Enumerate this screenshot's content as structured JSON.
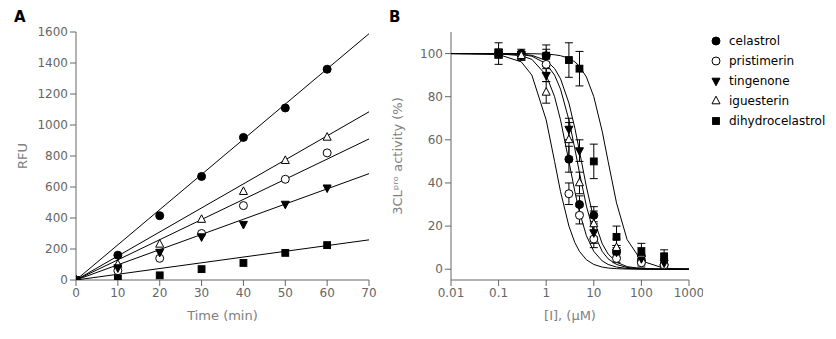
{
  "chart_data": [
    {
      "type": "scatter",
      "title": "A",
      "x_label": "Time (min)",
      "y_label": "RFU",
      "xlim": [
        0,
        70
      ],
      "ylim": [
        0,
        1600
      ],
      "xticks": [
        0,
        10,
        20,
        30,
        40,
        50,
        60,
        70
      ],
      "yticks": [
        0,
        200,
        400,
        600,
        800,
        1000,
        1200,
        1400,
        1600
      ],
      "grid": false,
      "series": [
        {
          "marker": "filled circle",
          "color": "#000000",
          "x": [
            0,
            10,
            20,
            30,
            40,
            50,
            60
          ],
          "values": [
            0,
            160,
            415,
            668,
            920,
            1110,
            1360
          ],
          "fit": {
            "x": [
              0,
              70
            ],
            "values": [
              0,
              1589
            ]
          }
        },
        {
          "marker": "open triangle-up",
          "color": "#000000",
          "x": [
            0,
            10,
            20,
            30,
            40,
            50,
            60
          ],
          "values": [
            0,
            100,
            230,
            390,
            570,
            770,
            920
          ],
          "fit": {
            "x": [
              0,
              70
            ],
            "values": [
              0,
              1085
            ]
          }
        },
        {
          "marker": "open circle",
          "color": "#000000",
          "x": [
            0,
            10,
            20,
            30,
            40,
            50,
            60
          ],
          "values": [
            0,
            60,
            140,
            300,
            480,
            650,
            820
          ],
          "fit": {
            "x": [
              0,
              70
            ],
            "values": [
              0,
              910
            ]
          }
        },
        {
          "marker": "filled triangle-down",
          "color": "#000000",
          "x": [
            0,
            10,
            20,
            30,
            40,
            50,
            60
          ],
          "values": [
            0,
            80,
            180,
            280,
            360,
            490,
            595
          ],
          "fit": {
            "x": [
              0,
              70
            ],
            "values": [
              0,
              686
            ]
          }
        },
        {
          "marker": "filled square",
          "color": "#000000",
          "x": [
            0,
            10,
            20,
            30,
            40,
            50,
            60
          ],
          "values": [
            0,
            10,
            30,
            70,
            110,
            175,
            225
          ],
          "fit": {
            "x": [
              0,
              70
            ],
            "values": [
              0,
              259
            ]
          }
        }
      ]
    },
    {
      "type": "scatter",
      "title": "B",
      "x_label": "[I], (μM)",
      "y_label": "3CLᵖʳᵒ activity (%)",
      "log": "x",
      "xlim": [
        0.01,
        1000
      ],
      "xticks": [
        0.01,
        0.1,
        1,
        10,
        100,
        1000
      ],
      "ylim": [
        -5,
        110
      ],
      "yticks": [
        0,
        20,
        40,
        60,
        80,
        100
      ],
      "grid": false,
      "legend": "right",
      "series": [
        {
          "name": "celastrol",
          "marker": "filled circle",
          "color": "#000000",
          "x": [
            0.1,
            0.3,
            1,
            3,
            5,
            10,
            30,
            100,
            300
          ],
          "values": [
            100,
            100,
            99,
            51,
            30,
            25,
            8,
            4,
            2
          ],
          "y_err": [
            2,
            2,
            3,
            6,
            4,
            4,
            3,
            2,
            2
          ],
          "fit": {
            "x": [
              0.01,
              0.1,
              0.3,
              0.5,
              1,
              1.5,
              2,
              3,
              4,
              5,
              7,
              10,
              15,
              20,
              30,
              50,
              100,
              300,
              1000
            ],
            "values": [
              100,
              99.89,
              99.01,
              97.3,
              90,
              80,
              69.23,
              50,
              36,
              26.47,
              15.52,
              8.26,
              3.85,
              2.2,
              0.99,
              0.36,
              0.09,
              0.01,
              0
            ]
          }
        },
        {
          "name": "pristimerin",
          "marker": "open circle",
          "color": "#000000",
          "x": [
            0.1,
            0.3,
            1,
            3,
            5,
            10,
            30,
            100,
            300
          ],
          "values": [
            100,
            99,
            95,
            35,
            25,
            14,
            5,
            3,
            2
          ],
          "y_err": [
            2,
            2,
            4,
            5,
            4,
            4,
            2,
            2,
            2
          ],
          "fit": {
            "x": [
              0.01,
              0.1,
              0.3,
              0.5,
              1,
              1.5,
              2,
              3,
              4,
              5,
              7,
              10,
              15,
              20,
              30,
              50,
              100,
              300,
              1000
            ],
            "values": [
              100,
              99.97,
              99.7,
              99.18,
              96.8,
              93.08,
              88.32,
              77.07,
              65.41,
              54.75,
              38.17,
              23.22,
              11.85,
              7.03,
              3.25,
              1.2,
              0.3,
              0.03,
              0
            ]
          }
        },
        {
          "name": "tingenone",
          "marker": "filled triangle-down",
          "color": "#000000",
          "x": [
            0.1,
            0.3,
            1,
            3,
            5,
            10,
            30,
            100,
            300
          ],
          "values": [
            100,
            99,
            90,
            65,
            55,
            17,
            8,
            5,
            3
          ],
          "y_err": [
            2,
            2,
            3,
            5,
            5,
            5,
            3,
            2,
            2
          ],
          "fit": {
            "x": [
              0.01,
              0.1,
              0.3,
              0.5,
              1,
              1.5,
              2,
              3,
              4,
              5,
              7,
              10,
              15,
              20,
              30,
              50,
              100,
              300,
              1000
            ],
            "values": [
              100,
              99.95,
              99.56,
              98.78,
              95.29,
              90,
              83.51,
              69.23,
              55.86,
              44.75,
              29.24,
              16.84,
              8.26,
              4.82,
              2.2,
              0.8,
              0.2,
              0.02,
              0
            ]
          }
        },
        {
          "name": "iguesterin",
          "marker": "open triangle-up",
          "color": "#000000",
          "x": [
            0.1,
            0.3,
            1,
            3,
            5,
            10,
            30,
            100
          ],
          "values": [
            100,
            99,
            82,
            60,
            40,
            21,
            10,
            7
          ],
          "y_err": [
            2,
            2,
            5,
            8,
            5,
            6,
            4,
            3
          ],
          "fit": {
            "x": [
              0.01,
              0.1,
              0.3,
              0.5,
              1,
              1.5,
              2,
              3,
              4,
              5,
              7,
              10,
              15,
              20,
              30,
              50,
              100,
              300,
              1000
            ],
            "values": [
              100,
              99.56,
              96.15,
              90,
              69.23,
              50,
              36,
              20,
              12.33,
              8.26,
              4.39,
              2.2,
              0.99,
              0.56,
              0.25,
              0.09,
              0.02,
              0,
              0
            ]
          }
        },
        {
          "name": "dihydrocelastrol",
          "marker": "filled square",
          "color": "#000000",
          "x": [
            0.1,
            1,
            3,
            5,
            10,
            30,
            100,
            300
          ],
          "values": [
            100,
            99,
            97,
            93,
            50,
            15,
            8,
            6
          ],
          "y_err": [
            5,
            5,
            8,
            8,
            8,
            5,
            4,
            3
          ],
          "fit": {
            "x": [
              0.01,
              0.1,
              0.3,
              0.5,
              1,
              1.5,
              2,
              3,
              4,
              5,
              7,
              10,
              15,
              20,
              30,
              50,
              100,
              300,
              1000
            ],
            "values": [
              100,
              100,
              99.98,
              99.94,
              99.75,
              99.44,
              99.01,
              97.8,
              96.15,
              94.12,
              89.09,
              80,
              64,
              50,
              30.77,
              13.79,
              3.85,
              0.44,
              0.04
            ]
          }
        }
      ]
    }
  ]
}
